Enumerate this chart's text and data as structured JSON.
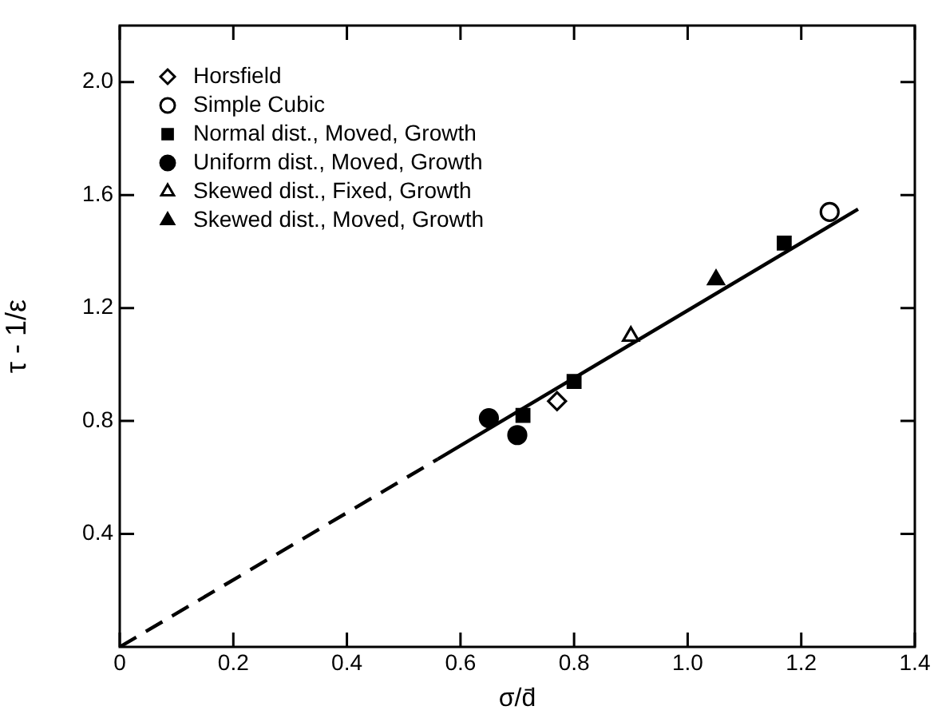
{
  "chart_data": {
    "type": "scatter",
    "xlabel": "σ/d̄",
    "ylabel": "τ - 1/ε",
    "xlim": [
      0,
      1.4
    ],
    "ylim": [
      0,
      2.2
    ],
    "xticks": [
      0,
      0.2,
      0.4,
      0.6,
      0.8,
      {
        "value": 1,
        "label": "1.0"
      },
      1.2,
      1.4
    ],
    "yticks": [
      0.4,
      0.8,
      1.2,
      1.6,
      {
        "value": 2,
        "label": "2.0"
      }
    ],
    "grid": false,
    "legend": "top left",
    "series": [
      {
        "name": "Horsfield",
        "color": "#ffffff",
        "marker": "diamond",
        "x": [
          0.77
        ],
        "values": [
          0.87
        ]
      },
      {
        "name": "Simple Cubic",
        "color": "#ffffff",
        "marker": "circle",
        "x": [
          1.25
        ],
        "values": [
          1.54
        ]
      },
      {
        "name": "Normal dist., Moved, Growth",
        "color": "#000000",
        "marker": "square",
        "x": [
          0.71,
          0.8,
          1.17
        ],
        "values": [
          0.82,
          0.94,
          1.43
        ]
      },
      {
        "name": "Uniform dist., Moved, Growth",
        "color": "#000000",
        "marker": "circle",
        "x": [
          0.65,
          0.7
        ],
        "values": [
          0.81,
          0.75
        ]
      },
      {
        "name": "Skewed dist., Fixed, Growth",
        "color": "#ffffff",
        "marker": "triangle",
        "x": [
          0.9
        ],
        "values": [
          1.1
        ]
      },
      {
        "name": "Skewed dist., Moved, Growth",
        "color": "#000000",
        "marker": "triangle",
        "x": [
          1.05
        ],
        "values": [
          1.3
        ]
      },
      {
        "type": "line",
        "color": "#000000",
        "marker": "none",
        "line_style": "dashed",
        "x": [
          0,
          0.56
        ],
        "values": [
          0,
          0.665
        ]
      },
      {
        "type": "line",
        "color": "#000000",
        "marker": "none",
        "line_style": "solid",
        "x": [
          0.56,
          1.3
        ],
        "values": [
          0.665,
          1.55
        ]
      }
    ]
  }
}
